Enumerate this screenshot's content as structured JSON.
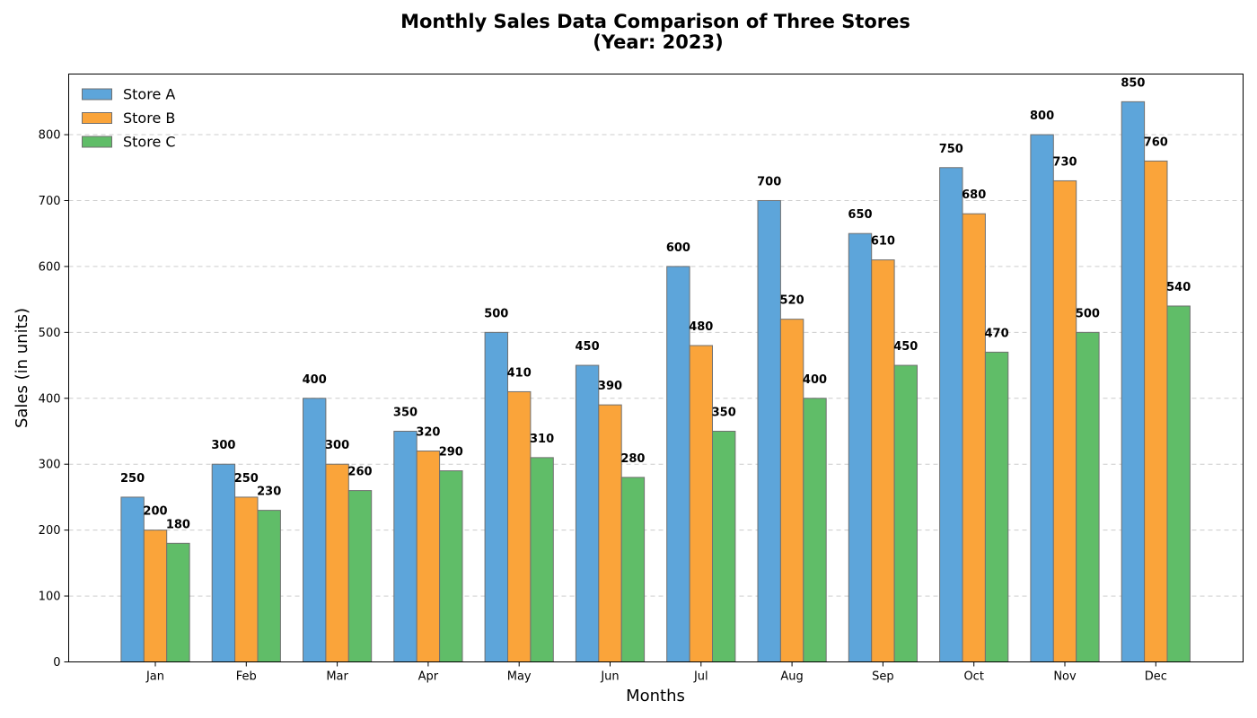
{
  "chart_data": {
    "type": "bar",
    "title_line1": "Monthly Sales Data Comparison of Three Stores",
    "title_line2": "(Year: 2023)",
    "xlabel": "Months",
    "ylabel": "Sales (in units)",
    "categories": [
      "Jan",
      "Feb",
      "Mar",
      "Apr",
      "May",
      "Jun",
      "Jul",
      "Aug",
      "Sep",
      "Oct",
      "Nov",
      "Dec"
    ],
    "ylim": [
      0,
      892
    ],
    "yticks": [
      0,
      100,
      200,
      300,
      400,
      500,
      600,
      700,
      800
    ],
    "ytick_labels": [
      "0",
      "100",
      "200",
      "300",
      "400",
      "500",
      "600",
      "700",
      "800"
    ],
    "grid": true,
    "legend_position": "top-left",
    "series": [
      {
        "name": "Store A",
        "color": "#5da5da",
        "values": [
          250,
          300,
          400,
          350,
          500,
          450,
          600,
          700,
          650,
          750,
          800,
          850
        ],
        "labels": [
          "250",
          "300",
          "400",
          "350",
          "500",
          "450",
          "600",
          "700",
          "650",
          "750",
          "800",
          "850"
        ]
      },
      {
        "name": "Store B",
        "color": "#faa43a",
        "values": [
          200,
          250,
          300,
          320,
          410,
          390,
          480,
          520,
          610,
          680,
          730,
          760
        ],
        "labels": [
          "200",
          "250",
          "300",
          "320",
          "410",
          "390",
          "480",
          "520",
          "610",
          "680",
          "730",
          "760"
        ]
      },
      {
        "name": "Store C",
        "color": "#60bd68",
        "values": [
          180,
          230,
          260,
          290,
          310,
          280,
          350,
          400,
          450,
          470,
          500,
          540
        ],
        "labels": [
          "180",
          "230",
          "260",
          "290",
          "310",
          "280",
          "350",
          "400",
          "450",
          "470",
          "500",
          "540"
        ]
      }
    ]
  }
}
